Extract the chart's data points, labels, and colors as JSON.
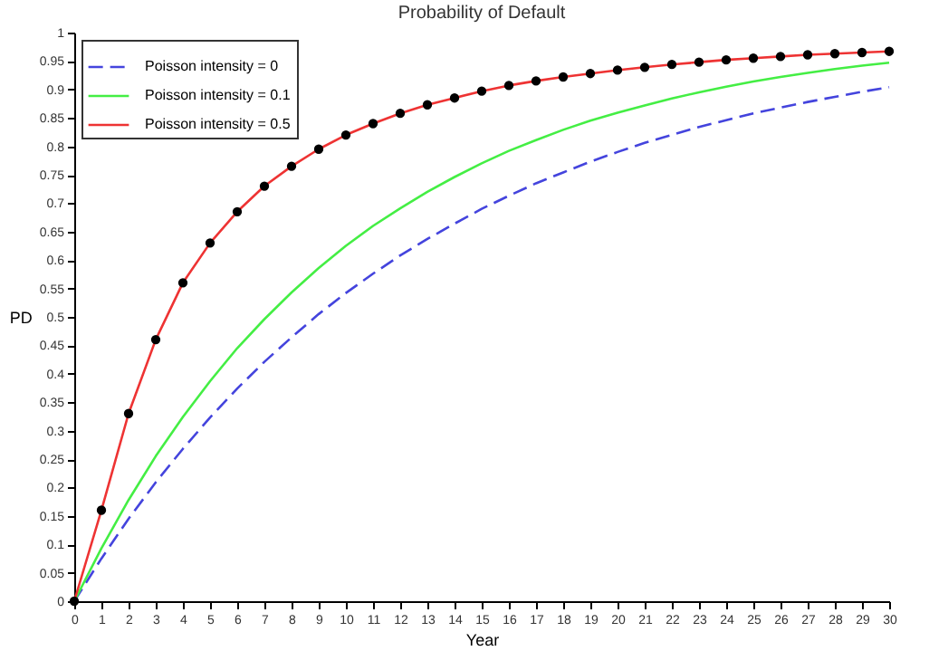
{
  "chart_data": {
    "type": "line",
    "title": "Probability of Default",
    "xlabel": "Year",
    "ylabel": "PD",
    "x": [
      0,
      1,
      2,
      3,
      4,
      5,
      6,
      7,
      8,
      9,
      10,
      11,
      12,
      13,
      14,
      15,
      16,
      17,
      18,
      19,
      20,
      21,
      22,
      23,
      24,
      25,
      26,
      27,
      28,
      29,
      30
    ],
    "series": [
      {
        "name": "Poisson intensity = 0",
        "color": "#4444dd",
        "line_style": "dashed",
        "marker": "none",
        "values": [
          0,
          0.075,
          0.145,
          0.209,
          0.268,
          0.323,
          0.374,
          0.421,
          0.464,
          0.505,
          0.542,
          0.576,
          0.608,
          0.637,
          0.664,
          0.69,
          0.713,
          0.735,
          0.754,
          0.773,
          0.79,
          0.806,
          0.82,
          0.834,
          0.846,
          0.858,
          0.868,
          0.878,
          0.887,
          0.896,
          0.904
        ]
      },
      {
        "name": "Poisson intensity = 0.1",
        "color": "#44ee44",
        "line_style": "solid",
        "marker": "none",
        "values": [
          0,
          0.093,
          0.178,
          0.255,
          0.324,
          0.387,
          0.445,
          0.496,
          0.543,
          0.586,
          0.625,
          0.66,
          0.691,
          0.72,
          0.746,
          0.77,
          0.792,
          0.811,
          0.829,
          0.845,
          0.859,
          0.872,
          0.884,
          0.895,
          0.905,
          0.914,
          0.922,
          0.929,
          0.936,
          0.942,
          0.947
        ]
      },
      {
        "name": "Poisson intensity = 0.5",
        "color": "#ee3333",
        "line_style": "solid",
        "marker": "circle",
        "values": [
          0,
          0.16,
          0.33,
          0.46,
          0.56,
          0.63,
          0.685,
          0.73,
          0.765,
          0.795,
          0.82,
          0.84,
          0.858,
          0.873,
          0.885,
          0.897,
          0.907,
          0.915,
          0.922,
          0.928,
          0.934,
          0.939,
          0.944,
          0.948,
          0.952,
          0.955,
          0.958,
          0.961,
          0.963,
          0.965,
          0.967
        ]
      }
    ],
    "xlim": [
      0,
      30
    ],
    "xticks": [
      0,
      1,
      2,
      3,
      4,
      5,
      6,
      7,
      8,
      9,
      10,
      11,
      12,
      13,
      14,
      15,
      16,
      17,
      18,
      19,
      20,
      21,
      22,
      23,
      24,
      25,
      26,
      27,
      28,
      29,
      30
    ],
    "ylim": [
      0,
      1
    ],
    "yticks": [
      0,
      0.05,
      0.1,
      0.15,
      0.2,
      0.25,
      0.3,
      0.35,
      0.4,
      0.45,
      0.5,
      0.55,
      0.6,
      0.65,
      0.7,
      0.75,
      0.8,
      0.85,
      0.9,
      0.95,
      1
    ],
    "grid": false,
    "legend": "top left"
  }
}
